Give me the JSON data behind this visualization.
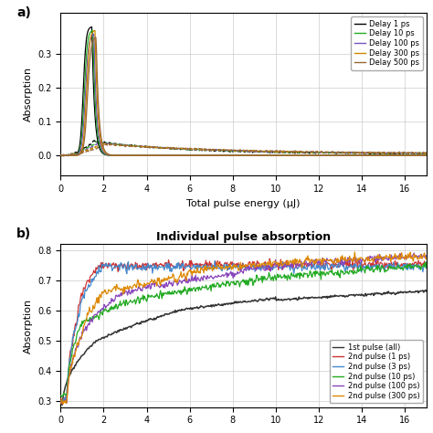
{
  "panel_a": {
    "xlabel": "Total pulse energy (μJ)",
    "ylabel": "Absorption",
    "xlim": [
      0,
      17
    ],
    "ylim": [
      -0.06,
      0.42
    ],
    "yticks": [
      0.0,
      0.1,
      0.2,
      0.3
    ],
    "xticks": [
      0,
      2,
      4,
      6,
      8,
      10,
      12,
      14,
      16
    ],
    "legend_entries": [
      "Delay 1 ps",
      "Delay 10 ps",
      "Delay 100 ps",
      "Delay 300 ps",
      "Delay 500 ps"
    ],
    "solid_colors": [
      "#000000",
      "#22aa22",
      "#7755bb",
      "#cc8800",
      "#996633"
    ],
    "dashed_colors": [
      "#000000",
      "#22aa22",
      "#7755bb",
      "#cc8800",
      "#996633"
    ]
  },
  "panel_b": {
    "title": "Individual pulse absorption",
    "ylabel": "Absorption",
    "xlim": [
      0,
      17
    ],
    "ylim": [
      0.28,
      0.82
    ],
    "yticks": [
      0.3,
      0.4,
      0.5,
      0.6,
      0.7,
      0.8
    ],
    "xticks": [
      0,
      2,
      4,
      6,
      8,
      10,
      12,
      14,
      16
    ],
    "legend_entries": [
      "1st pulse (all)",
      "2nd pulse (1 ps)",
      "2nd pulse (3 ps)",
      "2nd pulse (10 ps)",
      "2nd pulse (100 ps)",
      "2nd pulse (300 ps)"
    ],
    "legend_colors": [
      "#333333",
      "#cc3333",
      "#4488cc",
      "#22aa22",
      "#8844bb",
      "#dd8800"
    ]
  },
  "label_a": "a)",
  "label_b": "b)"
}
